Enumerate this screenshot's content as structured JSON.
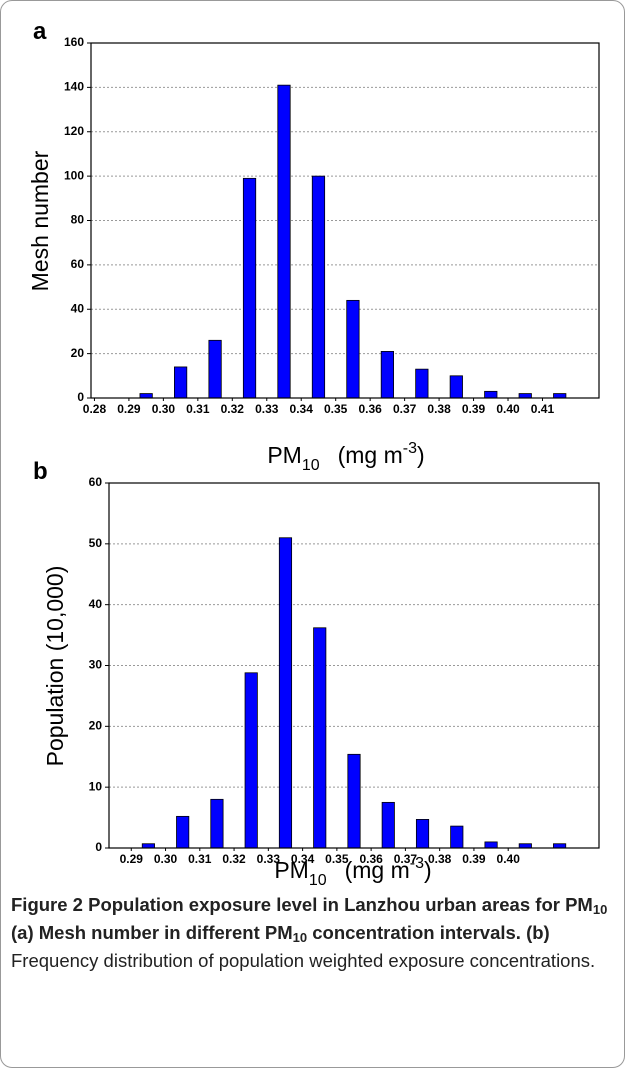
{
  "chart_data": [
    {
      "type": "histogram",
      "panel": "a",
      "ylabel": "Mesh number",
      "xlabel": [
        "PM",
        "10",
        "(mg m",
        "-3",
        ")"
      ],
      "bins": [
        0.29,
        0.3,
        0.31,
        0.32,
        0.33,
        0.34,
        0.35,
        0.36,
        0.37,
        0.38,
        0.39,
        0.4,
        0.41,
        0.42
      ],
      "counts": [
        2,
        14,
        26,
        99,
        141,
        100,
        44,
        21,
        13,
        10,
        3,
        2,
        2
      ],
      "color": "#0000ff",
      "xlim": [
        0.279,
        0.4264
      ],
      "xticks": [
        0.28,
        0.29,
        {
          "value": 0.3,
          "label": "0.30"
        },
        0.31,
        0.32,
        0.33,
        0.34,
        0.35,
        0.36,
        0.37,
        0.38,
        0.39,
        {
          "value": 0.4,
          "label": "0.40"
        },
        0.41
      ],
      "ylim": [
        0,
        160
      ],
      "yticks": [
        0,
        20,
        40,
        60,
        80,
        100,
        120,
        140,
        160
      ],
      "grid": true
    },
    {
      "type": "histogram",
      "panel": "b",
      "ylabel": "Population (10,000)",
      "xlabel": [
        "PM",
        "10",
        "(mg m",
        "-3",
        ")"
      ],
      "bins": [
        0.29,
        0.3,
        0.31,
        0.32,
        0.33,
        0.34,
        0.35,
        0.36,
        0.37,
        0.38,
        0.39,
        0.4,
        0.41,
        0.42
      ],
      "counts": [
        0.7,
        5.2,
        8,
        28.8,
        51,
        36.2,
        15.4,
        7.5,
        4.7,
        3.6,
        1,
        0.7,
        0.7
      ],
      "color": "#0000ff",
      "xlim": [
        0.2835,
        0.4265
      ],
      "xticks": [
        0.29,
        {
          "value": 0.3,
          "label": "0.30"
        },
        0.31,
        0.32,
        0.33,
        0.34,
        0.35,
        0.36,
        0.37,
        0.38,
        0.39,
        {
          "value": 0.4,
          "label": "0.40"
        }
      ],
      "ylim": [
        0,
        60
      ],
      "yticks": [
        0,
        10,
        20,
        30,
        40,
        50,
        60
      ],
      "grid": true
    }
  ],
  "caption": [
    {
      "text": "Figure 2 Population exposure level in Lanzhou urban areas for PM",
      "bold": true,
      "sub": false
    },
    {
      "text": "10",
      "bold": true,
      "sub": true
    },
    {
      "text": " (a) Mesh number in different PM",
      "bold": true,
      "sub": false
    },
    {
      "text": "10",
      "bold": true,
      "sub": true
    },
    {
      "text": " concentration intervals. (b)",
      "bold": true,
      "sub": false
    },
    {
      "text": " Frequency distribution of population weighted exposure concentrations.",
      "bold": false,
      "sub": false
    }
  ]
}
